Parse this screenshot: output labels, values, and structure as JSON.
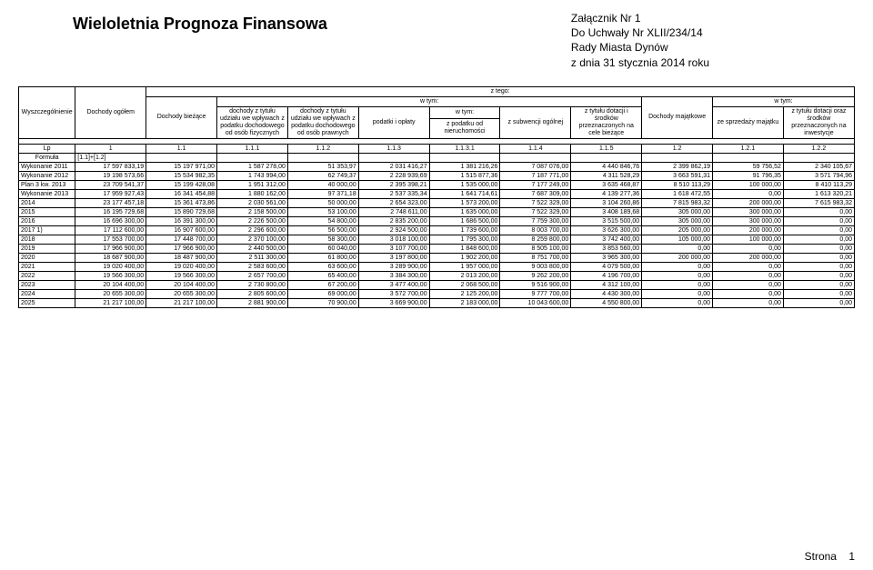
{
  "title": "Wieloletnia Prognoza Finansowa",
  "attachment": {
    "line1": "Załącznik Nr 1",
    "line2": "Do Uchwały Nr XLII/234/14",
    "line3": "Rady Miasta Dynów",
    "line4": "z dnia 31 stycznia 2014 roku"
  },
  "header": {
    "z_tego": "z tego:",
    "w_tym": "w tym:",
    "col0": "Wyszczególnienie",
    "col1": "Dochody ogółem",
    "col2": "Dochody bieżące",
    "col3": "dochody z tytułu udziału we wpływach z podatku dochodowego od osób fizycznych",
    "col4": "dochody z tytułu udziału we wpływach z podatku dochodowego od osób prawnych",
    "col5": "podatki i opłaty",
    "col6": "z podatku od nieruchomości",
    "col7": "z subwencji ogólnej",
    "col8": "z tytułu dotacji i środków przeznaczonych na cele bieżące",
    "col9": "Dochody majątkowe",
    "col10": "ze sprzedaży majątku",
    "col11": "z tytułu dotacji oraz środków przeznaczonych na inwestycje"
  },
  "lp": {
    "label": "Lp",
    "v1": "1",
    "v2": "1.1",
    "v3": "1.1.1",
    "v4": "1.1.2",
    "v5": "1.1.3",
    "v6": "1.1.3.1",
    "v7": "1.1.4",
    "v8": "1.1.5",
    "v9": "1.2",
    "v10": "1.2.1",
    "v11": "1.2.2"
  },
  "formula": {
    "label": "Formuła",
    "v1": "[1.1]+[1.2]"
  },
  "rows": [
    {
      "label": "Wykonanie 2011",
      "v": [
        "17 597 833,19",
        "15 197 971,00",
        "1 587 278,00",
        "51 353,97",
        "2 031 416,27",
        "1 381 216,26",
        "7 087 076,00",
        "4 440 846,76",
        "2 399 862,19",
        "59 756,52",
        "2 340 105,67"
      ]
    },
    {
      "label": "Wykonanie 2012",
      "v": [
        "19 198 573,66",
        "15 534 982,35",
        "1 743 994,00",
        "62 749,37",
        "2 228 939,69",
        "1 515 877,36",
        "7 187 771,00",
        "4 311 528,29",
        "3 663 591,31",
        "91 796,35",
        "3 571 794,96"
      ]
    },
    {
      "label": "Plan 3 kw. 2013",
      "v": [
        "23 709 541,37",
        "15 199 428,08",
        "1 951 312,00",
        "40 000,00",
        "2 395 398,21",
        "1 535 000,00",
        "7 177 249,00",
        "3 635 468,87",
        "8 510 113,29",
        "100 000,00",
        "8 410 113,29"
      ]
    },
    {
      "label": "Wykonanie 2013",
      "v": [
        "17 959 927,43",
        "16 341 454,88",
        "1 880 162,00",
        "97 371,18",
        "2 537 335,34",
        "1 641 714,61",
        "7 687 309,00",
        "4 139 277,36",
        "1 618 472,55",
        "0,00",
        "1 613 320,21"
      ]
    },
    {
      "label": "2014",
      "v": [
        "23 177 457,18",
        "15 361 473,86",
        "2 030 561,00",
        "50 000,00",
        "2 654 323,00",
        "1 573 200,00",
        "7 522 329,00",
        "3 104 260,86",
        "7 815 983,32",
        "200 000,00",
        "7 615 983,32"
      ]
    },
    {
      "label": "2015",
      "v": [
        "16 195 729,68",
        "15 890 729,68",
        "2 158 500,00",
        "53 100,00",
        "2 748 611,00",
        "1 635 000,00",
        "7 522 329,00",
        "3 408 189,68",
        "305 000,00",
        "300 000,00",
        "0,00"
      ]
    },
    {
      "label": "2016",
      "v": [
        "16 696 300,00",
        "16 391 300,00",
        "2 226 500,00",
        "54 800,00",
        "2 835 200,00",
        "1 686 500,00",
        "7 759 300,00",
        "3 515 500,00",
        "305 000,00",
        "300 000,00",
        "0,00"
      ]
    },
    {
      "label": "2017 1)",
      "v": [
        "17 112 600,00",
        "16 907 600,00",
        "2 296 600,00",
        "56 500,00",
        "2 924 500,00",
        "1 739 600,00",
        "8 003 700,00",
        "3 626 300,00",
        "205 000,00",
        "200 000,00",
        "0,00"
      ]
    },
    {
      "label": "2018",
      "v": [
        "17 553 700,00",
        "17 448 700,00",
        "2 370 100,00",
        "58 300,00",
        "3 018 100,00",
        "1 795 300,00",
        "8 259 800,00",
        "3 742 400,00",
        "105 000,00",
        "100 000,00",
        "0,00"
      ]
    },
    {
      "label": "2019",
      "v": [
        "17 966 900,00",
        "17 966 900,00",
        "2 440 500,00",
        "60 040,00",
        "3 107 700,00",
        "1 848 600,00",
        "8 505 100,00",
        "3 853 560,00",
        "0,00",
        "0,00",
        "0,00"
      ]
    },
    {
      "label": "2020",
      "v": [
        "18 687 900,00",
        "18 487 900,00",
        "2 511 300,00",
        "61 800,00",
        "3 197 800,00",
        "1 902 200,00",
        "8 751 700,00",
        "3 965 300,00",
        "200 000,00",
        "200 000,00",
        "0,00"
      ]
    },
    {
      "label": "2021",
      "v": [
        "19 020 400,00",
        "19 020 400,00",
        "2 583 600,00",
        "63 600,00",
        "3 289 900,00",
        "1 957 000,00",
        "9 003 800,00",
        "4 079 500,00",
        "0,00",
        "0,00",
        "0,00"
      ]
    },
    {
      "label": "2022",
      "v": [
        "19 566 300,00",
        "19 566 300,00",
        "2 657 700,00",
        "65 400,00",
        "3 384 300,00",
        "2 013 200,00",
        "9 262 200,00",
        "4 196 700,00",
        "0,00",
        "0,00",
        "0,00"
      ]
    },
    {
      "label": "2023",
      "v": [
        "20 104 400,00",
        "20 104 400,00",
        "2 730 800,00",
        "67 200,00",
        "3 477 400,00",
        "2 068 500,00",
        "9 516 900,00",
        "4 312 100,00",
        "0,00",
        "0,00",
        "0,00"
      ]
    },
    {
      "label": "2024",
      "v": [
        "20 655 300,00",
        "20 655 300,00",
        "2 805 600,00",
        "69 000,00",
        "3 572 700,00",
        "2 125 200,00",
        "9 777 700,00",
        "4 430 300,00",
        "0,00",
        "0,00",
        "0,00"
      ]
    },
    {
      "label": "2025",
      "v": [
        "21 217 100,00",
        "21 217 100,00",
        "2 881 900,00",
        "70 900,00",
        "3 669 900,00",
        "2 183 000,00",
        "10 043 600,00",
        "4 550 800,00",
        "0,00",
        "0,00",
        "0,00"
      ]
    }
  ],
  "footer": {
    "strona": "Strona",
    "page": "1"
  }
}
